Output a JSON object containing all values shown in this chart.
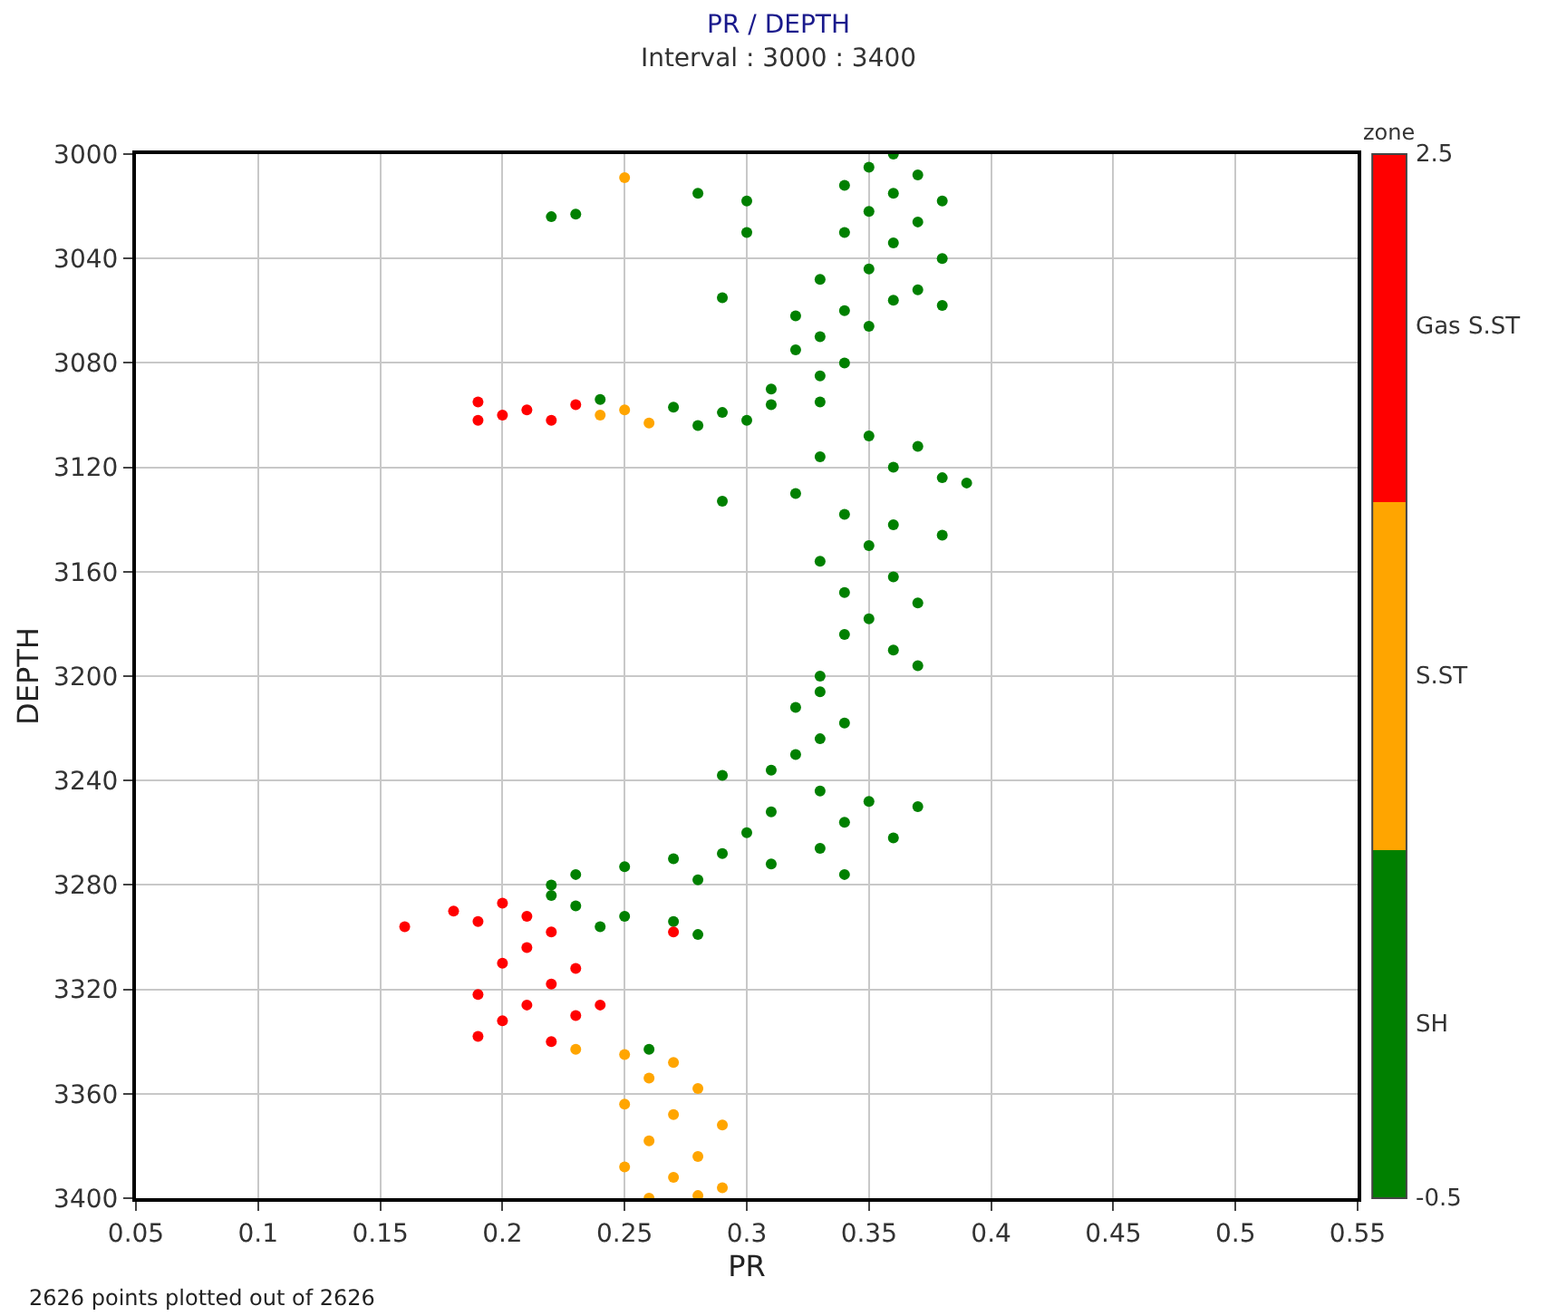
{
  "chart_data": {
    "type": "scatter",
    "title": "PR / DEPTH",
    "subtitle": "Interval : 3000 : 3400",
    "xlabel": "PR",
    "ylabel": "DEPTH",
    "clabel": "zone",
    "annotations": [
      "2626 points plotted out of 2626"
    ],
    "xlim": [
      0.05,
      0.55
    ],
    "xticks": [
      0.05,
      0.1,
      0.15,
      0.2,
      0.25,
      0.3,
      0.35,
      0.4,
      0.45,
      0.5,
      0.55
    ],
    "ylim": [
      3400,
      3000
    ],
    "yticks": [
      3000,
      3040,
      3080,
      3120,
      3160,
      3200,
      3240,
      3280,
      3320,
      3360,
      3400
    ],
    "clim": [
      -0.5,
      2.5
    ],
    "cticks": [
      {
        "value": 2.5,
        "label": "2.5"
      },
      {
        "value": 2,
        "label": "Gas S.ST"
      },
      {
        "value": 1,
        "label": "S.ST"
      },
      {
        "value": 0,
        "label": "SH"
      },
      {
        "value": -0.5,
        "label": "-0.5"
      }
    ],
    "grid": true,
    "marker": "circle",
    "series": [
      {
        "color": "#008000",
        "x": [
          0.36,
          0.35,
          0.37,
          0.34,
          0.36,
          0.38,
          0.35,
          0.37,
          0.34,
          0.36,
          0.38,
          0.35,
          0.33,
          0.37,
          0.36,
          0.34,
          0.32,
          0.38,
          0.35,
          0.33,
          0.32,
          0.34,
          0.33,
          0.31,
          0.23,
          0.22,
          0.28,
          0.3,
          0.3,
          0.29,
          0.27,
          0.29,
          0.31,
          0.33,
          0.28,
          0.3,
          0.24,
          0.35,
          0.37,
          0.33,
          0.36,
          0.38,
          0.39,
          0.29,
          0.32,
          0.34,
          0.36,
          0.38,
          0.35,
          0.33,
          0.36,
          0.34,
          0.37,
          0.35,
          0.34,
          0.36,
          0.37,
          0.33,
          0.33,
          0.32,
          0.34,
          0.33,
          0.32,
          0.31,
          0.29,
          0.33,
          0.35,
          0.37,
          0.31,
          0.34,
          0.3,
          0.36,
          0.33,
          0.29,
          0.34,
          0.27,
          0.25,
          0.23,
          0.22,
          0.31,
          0.28,
          0.23,
          0.25,
          0.27,
          0.28,
          0.24,
          0.22,
          0.26
        ],
        "values": [
          3000,
          3005,
          3008,
          3012,
          3015,
          3018,
          3022,
          3026,
          3030,
          3034,
          3040,
          3044,
          3048,
          3052,
          3056,
          3060,
          3062,
          3058,
          3066,
          3070,
          3075,
          3080,
          3085,
          3090,
          3023,
          3024,
          3015,
          3018,
          3030,
          3055,
          3097,
          3099,
          3096,
          3095,
          3104,
          3102,
          3094,
          3108,
          3112,
          3116,
          3120,
          3124,
          3126,
          3133,
          3130,
          3138,
          3142,
          3146,
          3150,
          3156,
          3162,
          3168,
          3172,
          3178,
          3184,
          3190,
          3196,
          3200,
          3206,
          3212,
          3218,
          3224,
          3230,
          3236,
          3238,
          3244,
          3248,
          3250,
          3252,
          3256,
          3260,
          3262,
          3266,
          3268,
          3276,
          3270,
          3273,
          3276,
          3280,
          3272,
          3278,
          3288,
          3292,
          3294,
          3299,
          3296,
          3284,
          3343
        ]
      },
      {
        "color": "#ffa500",
        "x": [
          0.25,
          0.24,
          0.25,
          0.26,
          0.23,
          0.25,
          0.27,
          0.26,
          0.28,
          0.25,
          0.27,
          0.29,
          0.26,
          0.28,
          0.25,
          0.27,
          0.29,
          0.26,
          0.28
        ],
        "values": [
          3009,
          3100,
          3098,
          3103,
          3343,
          3345,
          3348,
          3354,
          3358,
          3364,
          3368,
          3372,
          3378,
          3384,
          3388,
          3392,
          3396,
          3400,
          3399
        ]
      },
      {
        "color": "#ff0000",
        "x": [
          0.19,
          0.2,
          0.21,
          0.22,
          0.23,
          0.19,
          0.18,
          0.2,
          0.16,
          0.19,
          0.21,
          0.22,
          0.27,
          0.21,
          0.2,
          0.23,
          0.22,
          0.19,
          0.21,
          0.2,
          0.23,
          0.19,
          0.22,
          0.24
        ],
        "values": [
          3095,
          3100,
          3098,
          3102,
          3096,
          3102,
          3290,
          3287,
          3296,
          3294,
          3292,
          3298,
          3298,
          3304,
          3310,
          3312,
          3318,
          3322,
          3326,
          3332,
          3330,
          3338,
          3340,
          3326
        ]
      }
    ]
  }
}
